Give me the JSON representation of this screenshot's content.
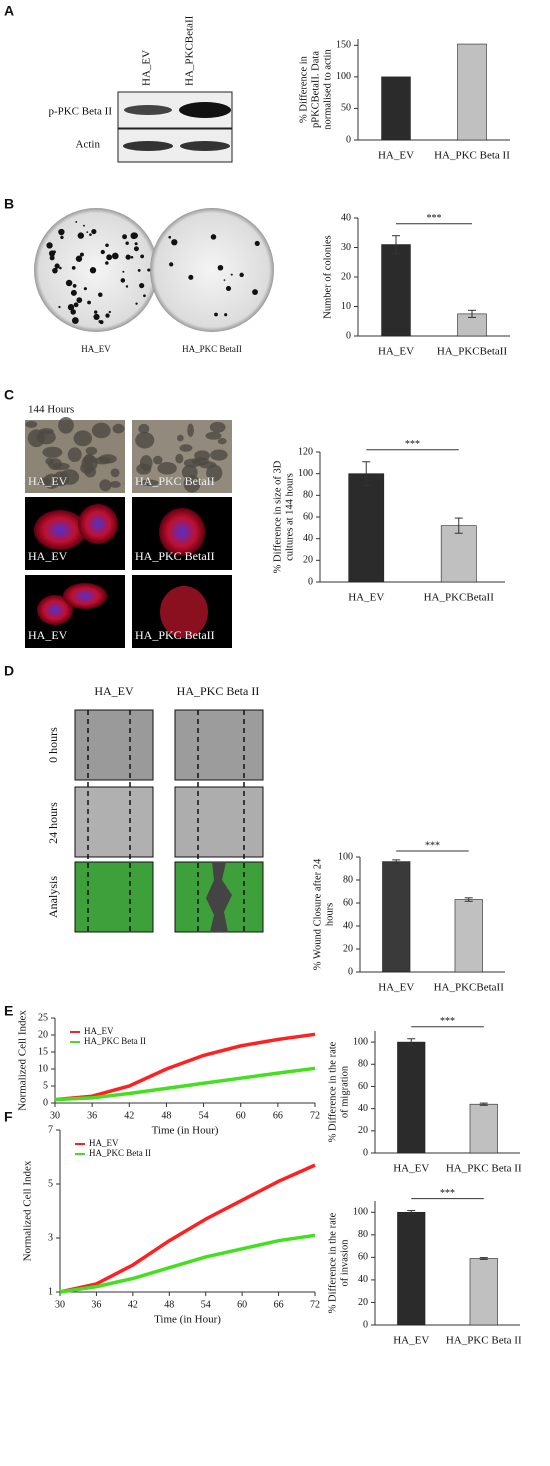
{
  "figure": {
    "panel_labels": [
      "A",
      "B",
      "C",
      "D",
      "E",
      "F"
    ],
    "blot": {
      "columns": [
        "HA_EV",
        "HA_PKCBetaII"
      ],
      "rows": [
        "p-PKC Beta II",
        "Actin"
      ]
    },
    "colony_labels": [
      "HA_EV",
      "HA_PKC BetaII"
    ],
    "culture": {
      "title": "144 Hours",
      "labels": [
        [
          "HA_EV",
          "HA_PKC BetaII"
        ],
        [
          "HA_EV",
          "HA_PKC BetaII"
        ],
        [
          "HA_EV",
          "HA_PKC BetaII"
        ]
      ]
    },
    "wound": {
      "columns": [
        "HA_EV",
        "HA_PKC Beta II"
      ],
      "rows": [
        "0 hours",
        "24 hours",
        "Analysis"
      ]
    }
  },
  "chart_data": [
    {
      "type": "bar",
      "y_label": [
        "% Difference in",
        "pPKCBetaII. Data",
        "normalised to actin"
      ],
      "categories": [
        "HA_EV",
        "HA_PKC Beta II"
      ],
      "values": [
        100,
        152
      ],
      "colors": [
        "#2b2b2b",
        "#c0c0c0"
      ],
      "ylim": [
        0,
        160
      ],
      "yticks": [
        0,
        50,
        100,
        150
      ]
    },
    {
      "type": "bar",
      "y_label": [
        "Number of colonies"
      ],
      "categories": [
        "HA_EV",
        "HA_PKCBetaII"
      ],
      "values": [
        31,
        7.5
      ],
      "errors": [
        3,
        1.2
      ],
      "colors": [
        "#2b2b2b",
        "#c0c0c0"
      ],
      "ylim": [
        0,
        40
      ],
      "yticks": [
        0,
        10,
        20,
        30,
        40
      ],
      "annotation": "***"
    },
    {
      "type": "bar",
      "y_label": [
        "% Difference in size of 3D",
        "cultures at 144 hours"
      ],
      "categories": [
        "HA_EV",
        "HA_PKCBetaII"
      ],
      "values": [
        100,
        52
      ],
      "errors": [
        11,
        7
      ],
      "colors": [
        "#2b2b2b",
        "#c0c0c0"
      ],
      "ylim": [
        0,
        120
      ],
      "yticks": [
        0,
        20,
        40,
        60,
        80,
        100,
        120
      ],
      "annotation": "***"
    },
    {
      "type": "bar",
      "y_label": [
        "% Wound Closure after 24",
        "hours"
      ],
      "categories": [
        "HA_EV",
        "HA_PKCBetaII"
      ],
      "values": [
        96,
        63
      ],
      "errors": [
        1.5,
        1.5
      ],
      "colors": [
        "#3a3a3a",
        "#c0c0c0"
      ],
      "ylim": [
        0,
        100
      ],
      "yticks": [
        0,
        20,
        40,
        60,
        80,
        100
      ],
      "annotation": "***"
    },
    {
      "type": "line",
      "x_label": "Time (in Hour)",
      "y_label": "Normalized Cell Index",
      "x": [
        30,
        36,
        42,
        48,
        54,
        60,
        66,
        72
      ],
      "xlim": [
        30,
        72
      ],
      "xticks": [
        30,
        36,
        42,
        48,
        54,
        60,
        66,
        72
      ],
      "ylim": [
        0,
        25
      ],
      "yticks": [
        0,
        5,
        10,
        15,
        20,
        25
      ],
      "legend": "upper left",
      "series": [
        {
          "name": "HA_EV",
          "color": "#ff2020",
          "values": [
            1,
            2,
            5,
            10,
            14,
            16.8,
            18.7,
            20.2
          ]
        },
        {
          "name": "HA_PKC Beta II",
          "color": "#44e020",
          "values": [
            1,
            1.5,
            2.8,
            4.3,
            5.8,
            7.3,
            8.8,
            10.2
          ]
        }
      ]
    },
    {
      "type": "bar",
      "y_label": [
        "% Difference in the rate",
        "of migration"
      ],
      "categories": [
        "HA_EV",
        "HA_PKC Beta II"
      ],
      "values": [
        100,
        44
      ],
      "errors": [
        3,
        1
      ],
      "colors": [
        "#2b2b2b",
        "#c0c0c0"
      ],
      "ylim": [
        0,
        110
      ],
      "yticks": [
        0,
        20,
        40,
        60,
        80,
        100
      ],
      "annotation": "***"
    },
    {
      "type": "line",
      "x_label": "Time (in Hour)",
      "y_label": "Normalized Cell Index",
      "x": [
        30,
        36,
        42,
        48,
        54,
        60,
        66,
        72
      ],
      "xlim": [
        30,
        72
      ],
      "xticks": [
        30,
        36,
        42,
        48,
        54,
        60,
        66,
        72
      ],
      "ylim": [
        1,
        7
      ],
      "yticks": [
        1,
        3,
        5,
        7
      ],
      "legend": "upper left",
      "series": [
        {
          "name": "HA_EV",
          "color": "#ff2020",
          "values": [
            1,
            1.3,
            2,
            2.9,
            3.7,
            4.4,
            5.1,
            5.7
          ]
        },
        {
          "name": "HA_PKC Beta II",
          "color": "#44e020",
          "values": [
            1,
            1.2,
            1.5,
            1.9,
            2.3,
            2.6,
            2.9,
            3.1
          ]
        }
      ]
    },
    {
      "type": "bar",
      "y_label": [
        "% Difference in the rate",
        "of invasion"
      ],
      "categories": [
        "HA_EV",
        "HA_PKC Beta II"
      ],
      "values": [
        100,
        59
      ],
      "errors": [
        1.5,
        0.8
      ],
      "colors": [
        "#2b2b2b",
        "#c0c0c0"
      ],
      "ylim": [
        0,
        110
      ],
      "yticks": [
        0,
        20,
        40,
        60,
        80,
        100
      ],
      "annotation": "***"
    }
  ]
}
